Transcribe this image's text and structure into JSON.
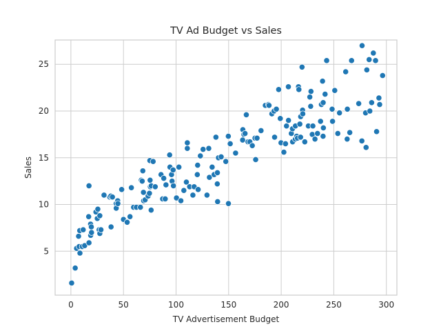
{
  "chart_data": {
    "type": "scatter",
    "title": "TV Ad Budget vs Sales",
    "xlabel": "TV Advertisement Budget",
    "ylabel": "Sales",
    "xlim": [
      -15,
      310
    ],
    "ylim": [
      0.3,
      27.6
    ],
    "xticks": [
      0,
      50,
      100,
      150,
      200,
      250,
      300
    ],
    "yticks": [
      5,
      10,
      15,
      20,
      25
    ],
    "grid": true,
    "legend": "none",
    "color": "#1f77b4",
    "points": [
      [
        0.7,
        1.6
      ],
      [
        4.1,
        3.2
      ],
      [
        5.4,
        5.3
      ],
      [
        7.3,
        6.6
      ],
      [
        7.8,
        5.5
      ],
      [
        8.4,
        7.2
      ],
      [
        8.6,
        4.8
      ],
      [
        10.8,
        5.5
      ],
      [
        11.7,
        7.3
      ],
      [
        13.1,
        5.6
      ],
      [
        16.9,
        8.7
      ],
      [
        17.2,
        12.0
      ],
      [
        17.2,
        5.9
      ],
      [
        18.7,
        7.9
      ],
      [
        18.8,
        6.7
      ],
      [
        19.4,
        7.6
      ],
      [
        19.6,
        7.0
      ],
      [
        23.8,
        9.2
      ],
      [
        25.1,
        8.5
      ],
      [
        25.6,
        9.5
      ],
      [
        26.8,
        7.3
      ],
      [
        27.5,
        6.9
      ],
      [
        27.5,
        8.8
      ],
      [
        28.6,
        7.3
      ],
      [
        31.5,
        11.0
      ],
      [
        36.9,
        10.8
      ],
      [
        38.0,
        10.9
      ],
      [
        38.2,
        7.6
      ],
      [
        39.5,
        10.8
      ],
      [
        43.0,
        10.1
      ],
      [
        43.1,
        9.6
      ],
      [
        44.5,
        10.4
      ],
      [
        44.7,
        10.1
      ],
      [
        48.3,
        11.6
      ],
      [
        50.0,
        8.4
      ],
      [
        53.5,
        8.1
      ],
      [
        56.2,
        8.7
      ],
      [
        57.5,
        11.8
      ],
      [
        59.6,
        9.7
      ],
      [
        62.3,
        9.7
      ],
      [
        66.1,
        9.7
      ],
      [
        66.9,
        12.6
      ],
      [
        67.8,
        12.5
      ],
      [
        68.4,
        13.6
      ],
      [
        69.0,
        11.3
      ],
      [
        69.2,
        10.4
      ],
      [
        70.6,
        10.5
      ],
      [
        73.4,
        10.9
      ],
      [
        74.7,
        11.2
      ],
      [
        75.1,
        14.7
      ],
      [
        75.3,
        12.6
      ],
      [
        75.5,
        11.9
      ],
      [
        76.3,
        9.4
      ],
      [
        76.4,
        12.0
      ],
      [
        78.2,
        14.6
      ],
      [
        80.2,
        11.9
      ],
      [
        85.7,
        13.2
      ],
      [
        87.2,
        10.6
      ],
      [
        88.3,
        12.8
      ],
      [
        89.7,
        10.6
      ],
      [
        90.4,
        12.1
      ],
      [
        93.9,
        15.3
      ],
      [
        94.2,
        14.0
      ],
      [
        95.7,
        13.2
      ],
      [
        96.2,
        12.5
      ],
      [
        97.2,
        13.7
      ],
      [
        97.5,
        12.0
      ],
      [
        100.4,
        10.7
      ],
      [
        102.7,
        14.0
      ],
      [
        104.6,
        10.4
      ],
      [
        107.4,
        11.5
      ],
      [
        109.8,
        12.4
      ],
      [
        110.7,
        16.0
      ],
      [
        110.7,
        16.6
      ],
      [
        112.9,
        11.9
      ],
      [
        116.0,
        11.0
      ],
      [
        117.2,
        11.9
      ],
      [
        120.2,
        13.2
      ],
      [
        120.5,
        14.2
      ],
      [
        121.0,
        11.6
      ],
      [
        123.1,
        15.2
      ],
      [
        125.7,
        15.9
      ],
      [
        129.4,
        11.0
      ],
      [
        131.1,
        16.0
      ],
      [
        131.7,
        12.9
      ],
      [
        134.3,
        14.0
      ],
      [
        136.2,
        13.2
      ],
      [
        137.9,
        17.2
      ],
      [
        139.2,
        12.2
      ],
      [
        139.3,
        13.4
      ],
      [
        139.5,
        10.3
      ],
      [
        140.3,
        15.0
      ],
      [
        142.9,
        15.1
      ],
      [
        147.3,
        14.6
      ],
      [
        149.7,
        17.3
      ],
      [
        149.8,
        10.1
      ],
      [
        151.5,
        16.5
      ],
      [
        156.6,
        15.5
      ],
      [
        163.3,
        16.9
      ],
      [
        163.5,
        18.0
      ],
      [
        164.5,
        17.5
      ],
      [
        165.6,
        17.6
      ],
      [
        166.8,
        19.6
      ],
      [
        168.4,
        16.7
      ],
      [
        170.2,
        16.7
      ],
      [
        172.5,
        16.3
      ],
      [
        175.1,
        17.1
      ],
      [
        175.7,
        14.8
      ],
      [
        177.0,
        17.1
      ],
      [
        180.8,
        17.9
      ],
      [
        184.9,
        20.6
      ],
      [
        187.9,
        20.7
      ],
      [
        188.4,
        20.6
      ],
      [
        191.1,
        19.7
      ],
      [
        193.2,
        20.0
      ],
      [
        193.7,
        17.2
      ],
      [
        195.4,
        20.2
      ],
      [
        197.6,
        22.3
      ],
      [
        199.1,
        19.2
      ],
      [
        199.8,
        16.6
      ],
      [
        202.5,
        15.6
      ],
      [
        204.1,
        16.5
      ],
      [
        205.0,
        18.4
      ],
      [
        206.8,
        22.6
      ],
      [
        206.9,
        19.0
      ],
      [
        209.6,
        17.6
      ],
      [
        210.7,
        18.1
      ],
      [
        210.8,
        16.7
      ],
      [
        213.4,
        17.0
      ],
      [
        213.5,
        18.4
      ],
      [
        214.7,
        17.3
      ],
      [
        215.4,
        17.1
      ],
      [
        216.4,
        22.6
      ],
      [
        216.8,
        22.3
      ],
      [
        217.7,
        18.6
      ],
      [
        218.4,
        17.2
      ],
      [
        218.5,
        19.4
      ],
      [
        219.8,
        24.7
      ],
      [
        220.3,
        20.1
      ],
      [
        220.5,
        19.7
      ],
      [
        222.4,
        16.7
      ],
      [
        225.8,
        18.4
      ],
      [
        227.2,
        21.5
      ],
      [
        228.0,
        20.5
      ],
      [
        228.3,
        22.1
      ],
      [
        229.5,
        17.5
      ],
      [
        230.1,
        18.4
      ],
      [
        232.1,
        17.0
      ],
      [
        234.5,
        17.6
      ],
      [
        237.4,
        18.9
      ],
      [
        238.2,
        20.7
      ],
      [
        239.3,
        23.2
      ],
      [
        239.8,
        17.3
      ],
      [
        239.9,
        20.9
      ],
      [
        240.1,
        18.2
      ],
      [
        241.7,
        21.8
      ],
      [
        243.2,
        25.4
      ],
      [
        248.4,
        20.2
      ],
      [
        248.8,
        18.9
      ],
      [
        250.9,
        22.2
      ],
      [
        253.8,
        17.6
      ],
      [
        255.4,
        19.8
      ],
      [
        261.3,
        24.2
      ],
      [
        262.7,
        17.0
      ],
      [
        262.9,
        20.2
      ],
      [
        265.2,
        17.7
      ],
      [
        266.9,
        25.4
      ],
      [
        273.7,
        20.8
      ],
      [
        276.7,
        16.8
      ],
      [
        276.9,
        27.0
      ],
      [
        280.2,
        19.8
      ],
      [
        280.7,
        16.1
      ],
      [
        281.4,
        24.4
      ],
      [
        283.6,
        25.5
      ],
      [
        284.3,
        20.0
      ],
      [
        286.0,
        20.9
      ],
      [
        287.6,
        26.2
      ],
      [
        289.7,
        25.4
      ],
      [
        290.7,
        17.8
      ],
      [
        292.9,
        21.4
      ],
      [
        293.6,
        20.7
      ],
      [
        296.4,
        23.8
      ]
    ]
  }
}
